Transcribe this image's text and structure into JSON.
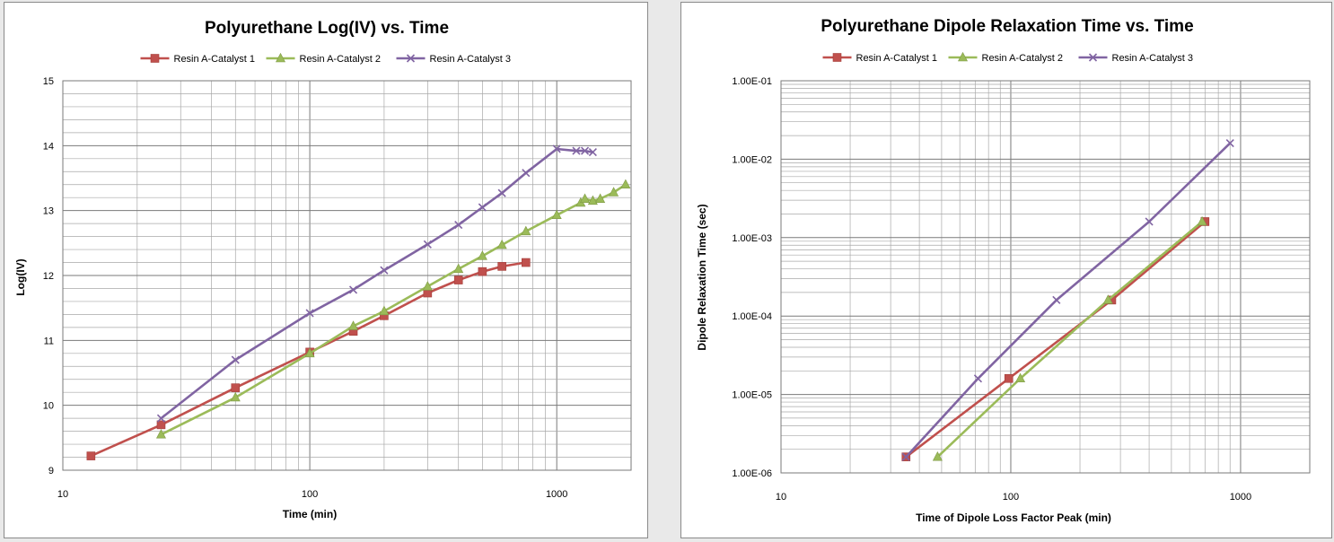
{
  "chart_data": [
    {
      "type": "line",
      "title": "Polyurethane Log(IV) vs. Time",
      "xlabel": "Time (min)",
      "ylabel": "Log(IV)",
      "xscale": "log",
      "xlim": [
        10,
        2000
      ],
      "ylim": [
        9,
        15
      ],
      "xticks": [
        "10",
        "100",
        "1000"
      ],
      "yticks": [
        "9",
        "10",
        "11",
        "12",
        "13",
        "14",
        "15"
      ],
      "grid": true,
      "legend": "top",
      "series": [
        {
          "name": "Resin A-Catalyst 1",
          "color": "#c0504d",
          "marker": "square",
          "x": [
            13,
            25,
            50,
            100,
            150,
            200,
            300,
            400,
            500,
            600,
            750
          ],
          "y": [
            9.22,
            9.7,
            10.27,
            10.82,
            11.14,
            11.38,
            11.73,
            11.93,
            12.06,
            12.14,
            12.2
          ]
        },
        {
          "name": "Resin A-Catalyst 2",
          "color": "#9bbb59",
          "marker": "triangle",
          "x": [
            25,
            50,
            100,
            150,
            200,
            300,
            400,
            500,
            600,
            750,
            1000,
            1250,
            1300,
            1400,
            1500,
            1700,
            1900
          ],
          "y": [
            9.55,
            10.12,
            10.8,
            11.22,
            11.45,
            11.83,
            12.1,
            12.3,
            12.47,
            12.68,
            12.93,
            13.12,
            13.18,
            13.15,
            13.18,
            13.28,
            13.4
          ]
        },
        {
          "name": "Resin A-Catalyst 3",
          "color": "#8064a2",
          "marker": "x",
          "x": [
            25,
            50,
            100,
            150,
            200,
            300,
            400,
            500,
            600,
            750,
            1000,
            1200,
            1300,
            1400
          ],
          "y": [
            9.8,
            10.7,
            11.42,
            11.78,
            12.08,
            12.48,
            12.78,
            13.05,
            13.27,
            13.58,
            13.95,
            13.92,
            13.92,
            13.9
          ]
        }
      ]
    },
    {
      "type": "line",
      "title": "Polyurethane Dipole Relaxation Time vs. Time",
      "xlabel": "Time of Dipole Loss Factor Peak (min)",
      "ylabel": "Dipole Relaxation Time (sec)",
      "xscale": "log",
      "yscale": "log",
      "xlim": [
        10,
        2000
      ],
      "ylim": [
        1e-06,
        0.1
      ],
      "xticks": [
        "10",
        "100",
        "1000"
      ],
      "yticks": [
        "1.00E-06",
        "1.00E-05",
        "1.00E-04",
        "1.00E-03",
        "1.00E-02",
        "1.00E-01"
      ],
      "grid": true,
      "legend": "top",
      "series": [
        {
          "name": "Resin A-Catalyst 1",
          "color": "#c0504d",
          "marker": "square",
          "x": [
            35,
            98,
            275,
            700
          ],
          "y": [
            1.6e-06,
            1.6e-05,
            0.00016,
            0.0016
          ]
        },
        {
          "name": "Resin A-Catalyst 2",
          "color": "#9bbb59",
          "marker": "triangle",
          "x": [
            48,
            110,
            265,
            680
          ],
          "y": [
            1.6e-06,
            1.6e-05,
            0.00016,
            0.0016
          ]
        },
        {
          "name": "Resin A-Catalyst 3",
          "color": "#8064a2",
          "marker": "x",
          "x": [
            35,
            72,
            158,
            400,
            900
          ],
          "y": [
            1.6e-06,
            1.6e-05,
            0.00016,
            0.0016,
            0.016
          ]
        }
      ]
    }
  ]
}
